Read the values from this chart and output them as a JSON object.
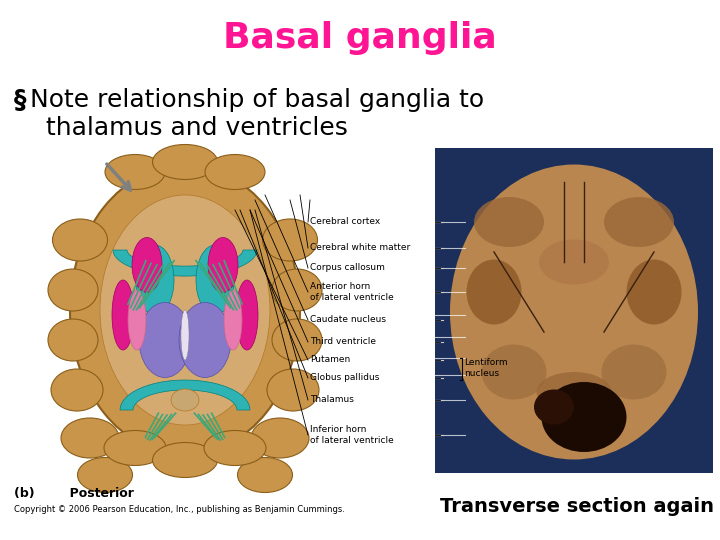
{
  "title": "Basal ganglia",
  "title_color": "#FF1493",
  "title_fontsize": 26,
  "bullet_symbol": "§",
  "bullet_line1": "Note relationship of basal ganglia to",
  "bullet_line2": "  thalamus and ventricles",
  "bullet_fontsize": 18,
  "bullet_color": "#000000",
  "bottom_left_bold": "(b)        Posterior",
  "bottom_copyright": "Copyright © 2006 Pearson Education, Inc., publishing as Benjamin Cummings.",
  "bottom_right_text": "Transverse section again",
  "bg_color": "#FFFFFF",
  "right_bg_color": "#1C2E5A",
  "brain_tan": "#C8954A",
  "brain_dark": "#8B5E1A",
  "brain_mid": "#B07828",
  "brain_light": "#D4AA70",
  "teal_color": "#2DB3B3",
  "green_color": "#3CA87A",
  "magenta_color": "#E0198A",
  "pink_color": "#E87AB0",
  "purple_color": "#8878C8",
  "gray_color": "#888888",
  "white_color": "#F0F0F0",
  "cream_color": "#C8A870"
}
